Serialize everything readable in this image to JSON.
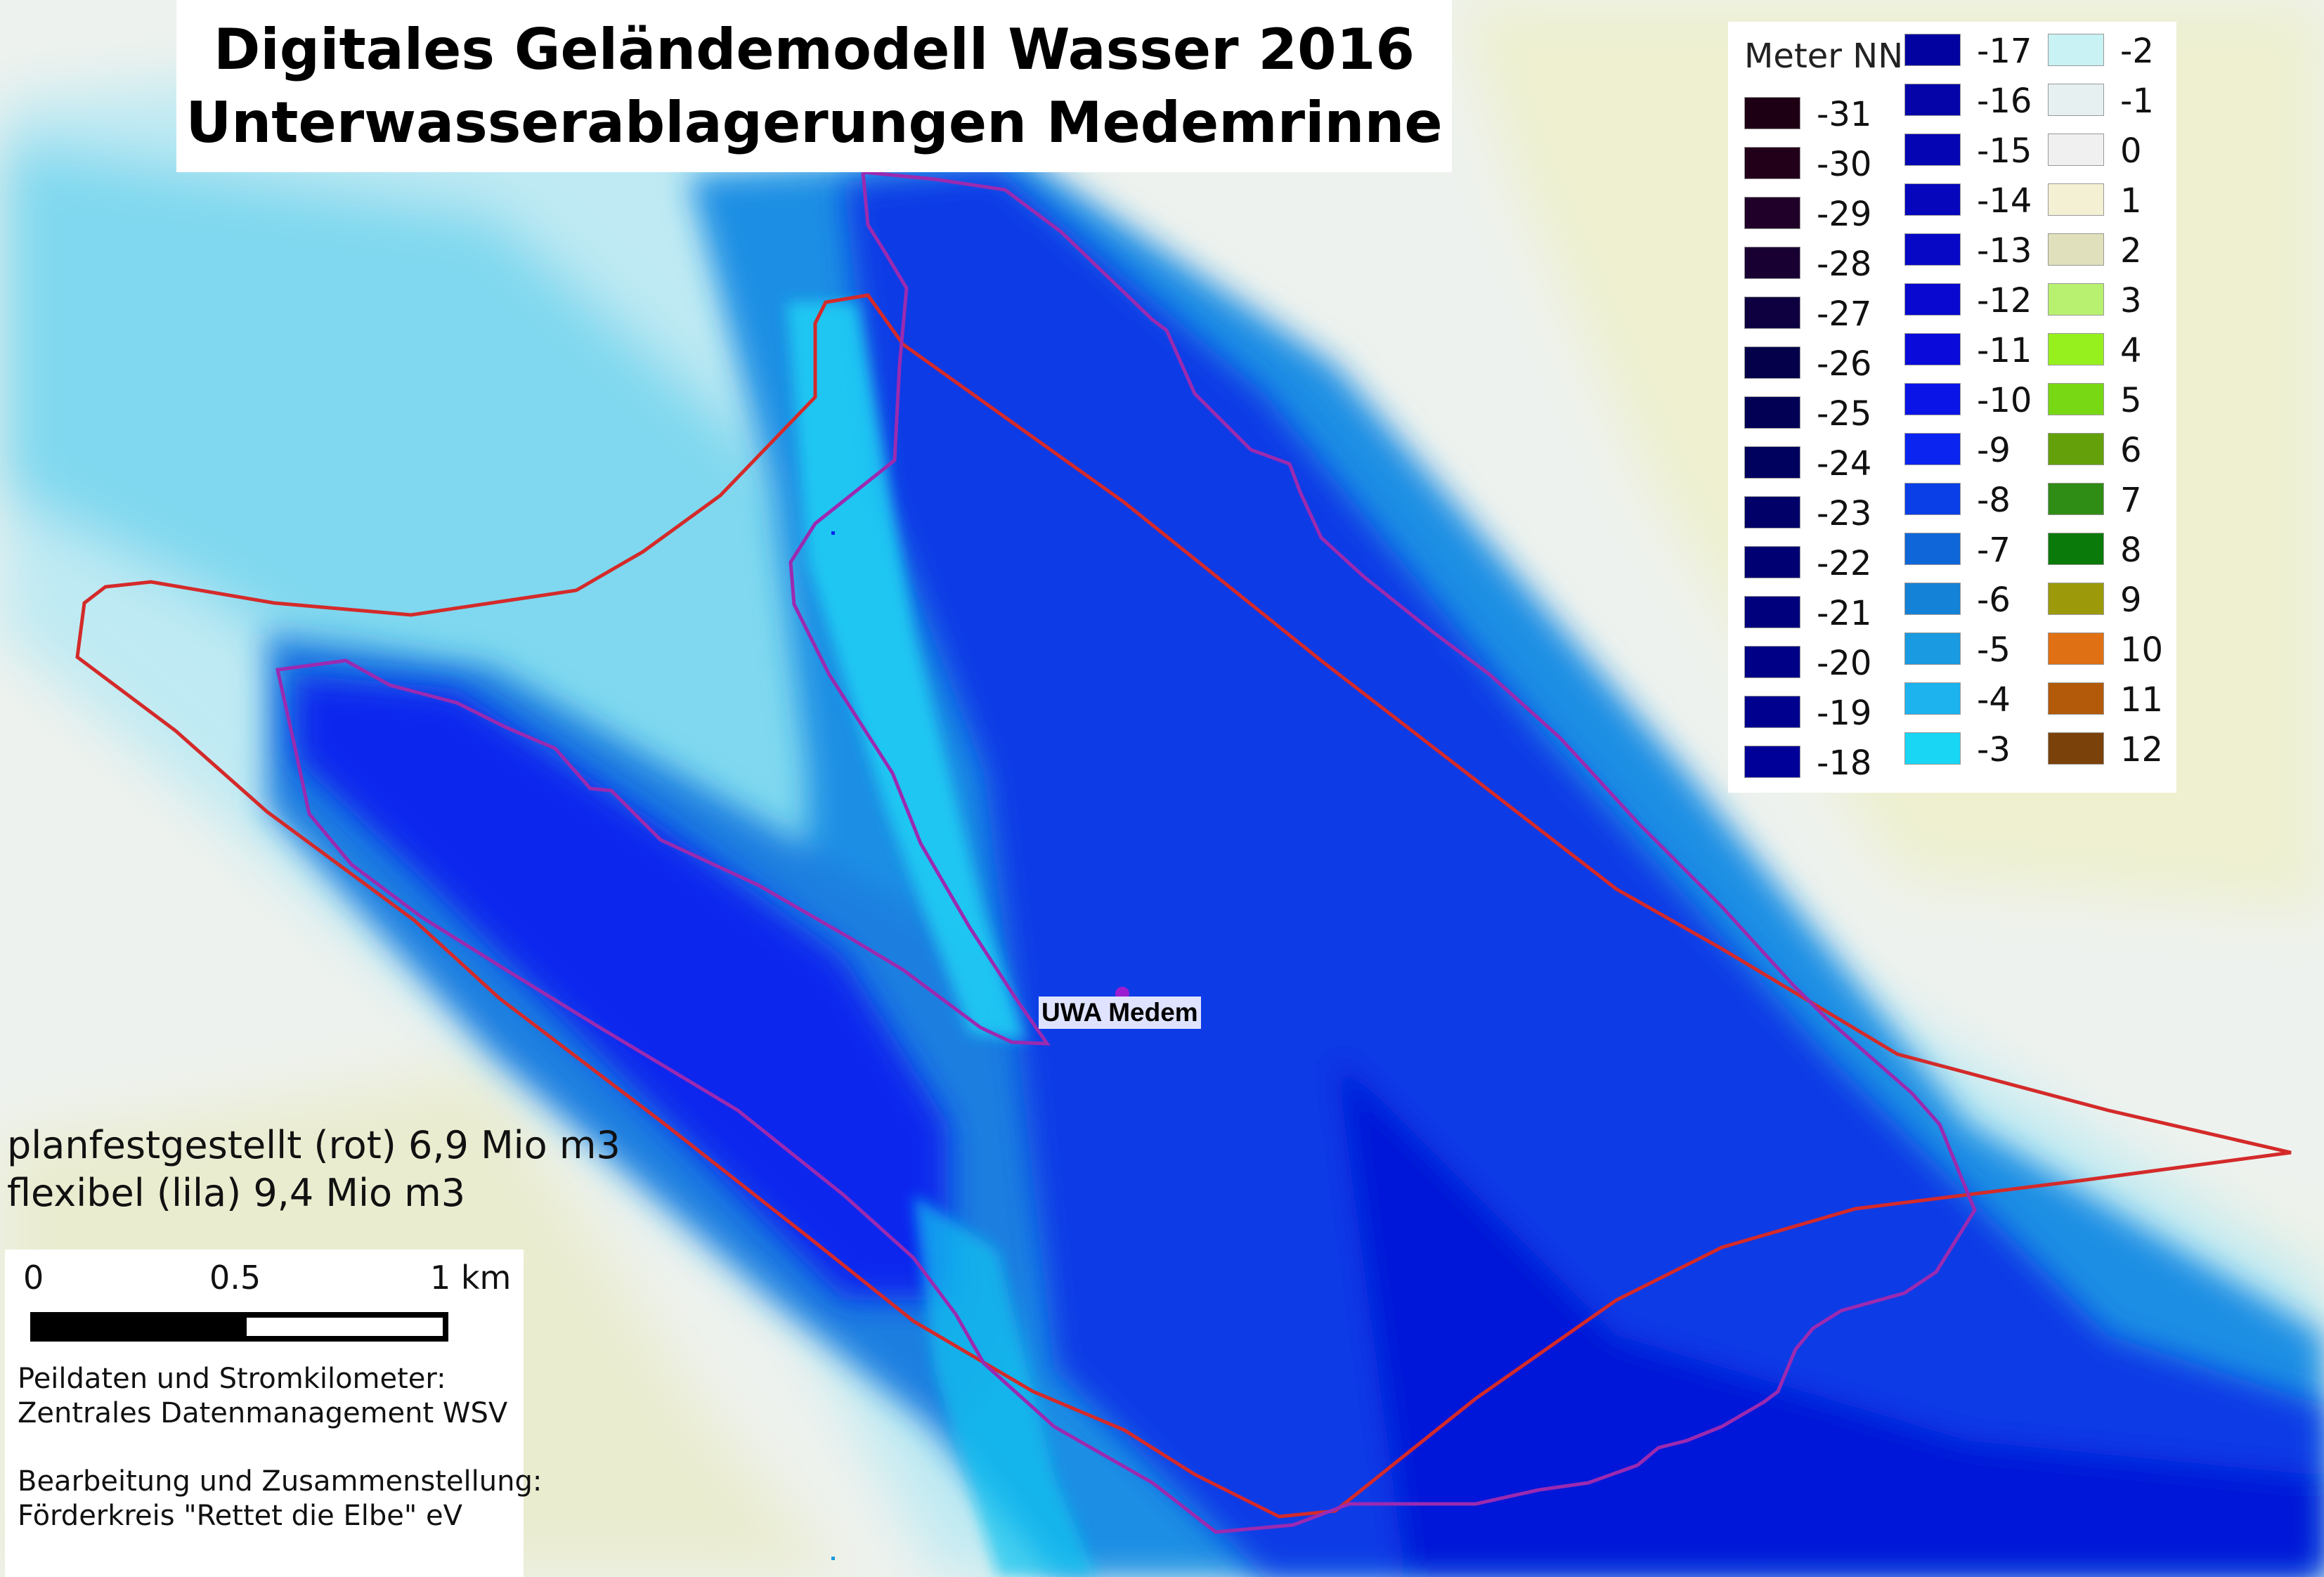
{
  "title": {
    "line1": "Digitales Geländemodell Wasser 2016",
    "line2": "Unterwasserablagerungen Medemrinne"
  },
  "legend": {
    "header": "Meter NN",
    "classes": [
      {
        "value": "-31",
        "color": "#1e0014"
      },
      {
        "value": "-30",
        "color": "#220019"
      },
      {
        "value": "-29",
        "color": "#200028"
      },
      {
        "value": "-28",
        "color": "#180033"
      },
      {
        "value": "-27",
        "color": "#0e0040"
      },
      {
        "value": "-26",
        "color": "#04004a"
      },
      {
        "value": "-25",
        "color": "#010055"
      },
      {
        "value": "-24",
        "color": "#00005e"
      },
      {
        "value": "-23",
        "color": "#000068"
      },
      {
        "value": "-22",
        "color": "#000072"
      },
      {
        "value": "-21",
        "color": "#00007c"
      },
      {
        "value": "-20",
        "color": "#000086"
      },
      {
        "value": "-19",
        "color": "#00008f"
      },
      {
        "value": "-18",
        "color": "#000098"
      },
      {
        "value": "-17",
        "color": "#0202a0"
      },
      {
        "value": "-16",
        "color": "#0404a9"
      },
      {
        "value": "-15",
        "color": "#0505b3"
      },
      {
        "value": "-14",
        "color": "#0606bc"
      },
      {
        "value": "-13",
        "color": "#0707c6"
      },
      {
        "value": "-12",
        "color": "#0808d0"
      },
      {
        "value": "-11",
        "color": "#0a0ada"
      },
      {
        "value": "-10",
        "color": "#0b14e6"
      },
      {
        "value": "-9",
        "color": "#0b24f0"
      },
      {
        "value": "-8",
        "color": "#0a3fe8"
      },
      {
        "value": "-7",
        "color": "#0f66d8"
      },
      {
        "value": "-6",
        "color": "#1482d6"
      },
      {
        "value": "-5",
        "color": "#1a9ae0"
      },
      {
        "value": "-4",
        "color": "#1cb3ee"
      },
      {
        "value": "-3",
        "color": "#18d6f4"
      },
      {
        "value": "-2",
        "color": "#c8f2f4"
      },
      {
        "value": "-1",
        "color": "#e6f0f0"
      },
      {
        "value": "0",
        "color": "#f0f0f0"
      },
      {
        "value": "1",
        "color": "#f3f0d4"
      },
      {
        "value": "2",
        "color": "#e0e0bc"
      },
      {
        "value": "3",
        "color": "#b8f070"
      },
      {
        "value": "4",
        "color": "#96f01e"
      },
      {
        "value": "5",
        "color": "#78d814"
      },
      {
        "value": "6",
        "color": "#64a00a"
      },
      {
        "value": "7",
        "color": "#2f8c14"
      },
      {
        "value": "8",
        "color": "#0a7a0a"
      },
      {
        "value": "9",
        "color": "#9c9a0a"
      },
      {
        "value": "10",
        "color": "#e07014"
      },
      {
        "value": "11",
        "color": "#b25a0a"
      },
      {
        "value": "12",
        "color": "#7a420a"
      }
    ]
  },
  "volumes": {
    "line1": "planfestgestellt (rot) 6,9 Mio m3",
    "line2": "flexibel (lila) 9,4 Mio m3"
  },
  "scalebar": {
    "labels": [
      "0",
      "0.5",
      "1 km"
    ]
  },
  "credits": {
    "line1": "Peildaten und Stromkilometer:",
    "line2": "Zentrales Datenmanagement WSV",
    "line3": "Bearbeitung und Zusammenstellung:",
    "line4": "Förderkreis \"Rettet die Elbe\" eV"
  },
  "marker": {
    "label": "UWA Medem"
  },
  "colors": {
    "red_outline": "#d42a2a",
    "purple_outline": "#9b2ab0"
  }
}
